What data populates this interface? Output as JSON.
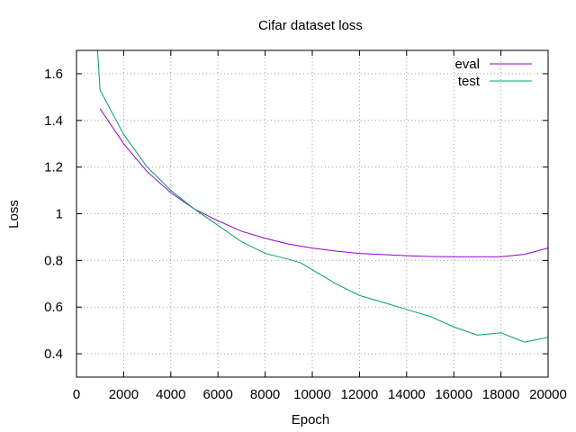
{
  "chart_data": {
    "type": "line",
    "title": "Cifar dataset loss",
    "xlabel": "Epoch",
    "ylabel": "Loss",
    "xlim": [
      0,
      20000
    ],
    "ylim": [
      0.3,
      1.7
    ],
    "x_ticks": [
      0,
      2000,
      4000,
      6000,
      8000,
      10000,
      12000,
      14000,
      16000,
      18000,
      20000
    ],
    "x_tick_labels": [
      "0",
      "2000",
      "4000",
      "6000",
      "8000",
      "10000",
      "12000",
      "14000",
      "16000",
      "18000",
      "20000"
    ],
    "y_ticks": [
      0.4,
      0.6,
      0.8,
      1.0,
      1.2,
      1.4,
      1.6
    ],
    "y_tick_labels": [
      "0.4",
      "0.6",
      "0.8",
      "1",
      "1.2",
      "1.4",
      "1.6"
    ],
    "grid": true,
    "legend_position": "top-right",
    "series": [
      {
        "name": "eval",
        "color": "#9400d3",
        "x": [
          1000,
          2000,
          3000,
          4000,
          5000,
          6000,
          7000,
          8000,
          9000,
          10000,
          11000,
          12000,
          13000,
          14000,
          15000,
          16000,
          17000,
          18000,
          19000,
          20000
        ],
        "y": [
          1.45,
          1.3,
          1.18,
          1.09,
          1.02,
          0.97,
          0.925,
          0.895,
          0.87,
          0.853,
          0.84,
          0.83,
          0.825,
          0.82,
          0.817,
          0.816,
          0.816,
          0.816,
          0.826,
          0.853
        ]
      },
      {
        "name": "test",
        "color": "#009e73",
        "x": [
          800,
          1000,
          2000,
          3000,
          4000,
          5000,
          6000,
          7000,
          8000,
          9000,
          9500,
          10000,
          11000,
          12000,
          13000,
          14000,
          15000,
          16000,
          17000,
          18000,
          19000,
          20000
        ],
        "y": [
          1.85,
          1.53,
          1.34,
          1.2,
          1.1,
          1.02,
          0.95,
          0.88,
          0.83,
          0.805,
          0.79,
          0.76,
          0.7,
          0.65,
          0.62,
          0.59,
          0.56,
          0.515,
          0.48,
          0.49,
          0.45,
          0.47
        ]
      }
    ]
  }
}
